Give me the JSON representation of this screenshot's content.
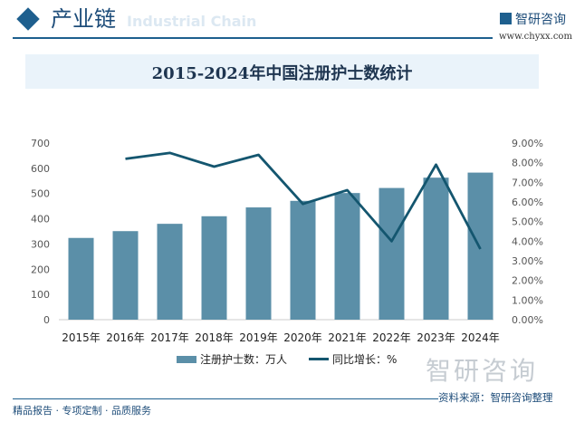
{
  "header": {
    "title": "产业链",
    "subtitle": "Industrial Chain",
    "logo": "智研咨询",
    "url": "www.chyxx.com"
  },
  "footer": {
    "slogan": "精品报告 · 专项定制 · 品质服务",
    "logo": "智研咨询",
    "source": "资料来源：智研咨询整理"
  },
  "chart_data": {
    "type": "bar+line",
    "title": "2015-2024年中国注册护士数统计",
    "categories": [
      "2015年",
      "2016年",
      "2017年",
      "2018年",
      "2019年",
      "2020年",
      "2021年",
      "2022年",
      "2023年",
      "2024年"
    ],
    "series": [
      {
        "name": "注册护士数：万人",
        "type": "bar",
        "axis": "left",
        "color": "#5b8fa8",
        "values": [
          324,
          351,
          380,
          410,
          445,
          471,
          502,
          522,
          563,
          583
        ]
      },
      {
        "name": "同比增长：%",
        "type": "line",
        "axis": "right",
        "color": "#14566f",
        "values": [
          null,
          8.2,
          8.5,
          7.8,
          8.4,
          5.9,
          6.6,
          4.0,
          7.9,
          3.6
        ]
      }
    ],
    "y_left": {
      "range": [
        0,
        700
      ],
      "ticks": [
        "0",
        "100",
        "200",
        "300",
        "400",
        "500",
        "600",
        "700"
      ]
    },
    "y_right": {
      "range": [
        0,
        9
      ],
      "ticks": [
        "0.00%",
        "1.00%",
        "2.00%",
        "3.00%",
        "4.00%",
        "5.00%",
        "6.00%",
        "7.00%",
        "8.00%",
        "9.00%"
      ]
    },
    "grid": false,
    "legend": "bottom"
  }
}
